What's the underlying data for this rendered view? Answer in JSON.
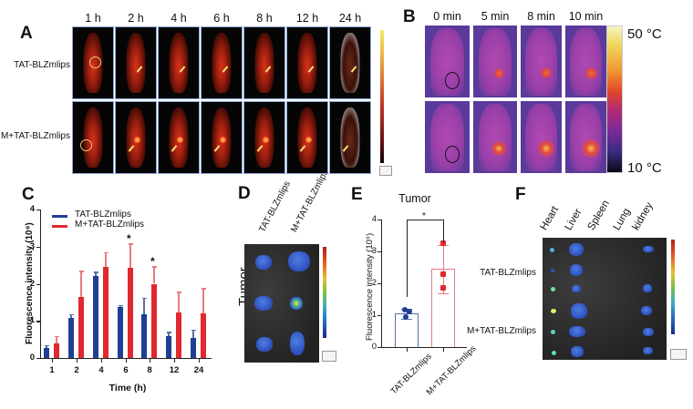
{
  "panels": {
    "A": {
      "label": "A",
      "timepoints": [
        "1 h",
        "2 h",
        "4 h",
        "6 h",
        "8 h",
        "12 h",
        "24 h"
      ],
      "rows": [
        "TAT-BLZmlips",
        "M+TAT-BLZmlips"
      ],
      "colorbar": "red-hot fluorescence scale"
    },
    "B": {
      "label": "B",
      "timepoints": [
        "0 min",
        "5 min",
        "8 min",
        "10 min"
      ],
      "colorbar_max": "50 °C",
      "colorbar_min": "10 °C"
    },
    "C": {
      "label": "C"
    },
    "D": {
      "label": "D",
      "columns": [
        "TAT-BLZmlips",
        "M+TAT-BLZmlips"
      ],
      "row_label": "Tumor"
    },
    "E": {
      "label": "E"
    },
    "F": {
      "label": "F",
      "organs": [
        "Heart",
        "Liver",
        "Spleen",
        "Lung",
        "kidney"
      ],
      "rows": [
        "TAT-BLZmlips",
        "M+TAT-BLZmlips"
      ]
    }
  },
  "colors": {
    "blue": "#1f3f94",
    "red": "#e0282e",
    "blue_light": "#5a6fa8",
    "red_light": "#e77b80"
  },
  "chart_data": [
    {
      "id": "C",
      "type": "bar",
      "title": "",
      "xlabel": "Time (h)",
      "ylabel": "Fluorescence intensity (10⁹)",
      "ylim": [
        0,
        4
      ],
      "yticks": [
        "0",
        "1",
        "2",
        "3",
        "4"
      ],
      "categories": [
        "1",
        "2",
        "4",
        "6",
        "8",
        "12",
        "24"
      ],
      "legend": [
        "TAT-BLZmlips",
        "M+TAT-BLZmlips"
      ],
      "legend_position": "top-left",
      "series": [
        {
          "name": "TAT-BLZmlips",
          "values": [
            0.27,
            1.08,
            2.2,
            1.38,
            1.17,
            0.6,
            0.55
          ],
          "errors": [
            0.08,
            0.1,
            0.12,
            0.05,
            0.45,
            0.1,
            0.22
          ]
        },
        {
          "name": "M+TAT-BLZmlips",
          "values": [
            0.4,
            1.65,
            2.45,
            2.42,
            2.0,
            1.22,
            1.2
          ],
          "errors": [
            0.2,
            0.7,
            0.4,
            0.66,
            0.47,
            0.56,
            0.68
          ]
        }
      ],
      "annotations": [
        {
          "category": "6",
          "text": "*"
        },
        {
          "category": "8",
          "text": "*"
        }
      ]
    },
    {
      "id": "E",
      "type": "bar",
      "title": "Tumor",
      "xlabel": "",
      "ylabel": "Fluorescence intensity (10⁹)",
      "ylim": [
        0,
        4
      ],
      "yticks": [
        "0",
        "1",
        "2",
        "3",
        "4"
      ],
      "categories": [
        "TAT-BLZmlips",
        "M+TAT-BLZmlips"
      ],
      "values": [
        1.05,
        2.45
      ],
      "errors": [
        0.15,
        0.75
      ],
      "points": [
        [
          1.18,
          1.12,
          0.93
        ],
        [
          3.25,
          2.3,
          1.85
        ]
      ],
      "significance": "*"
    }
  ]
}
